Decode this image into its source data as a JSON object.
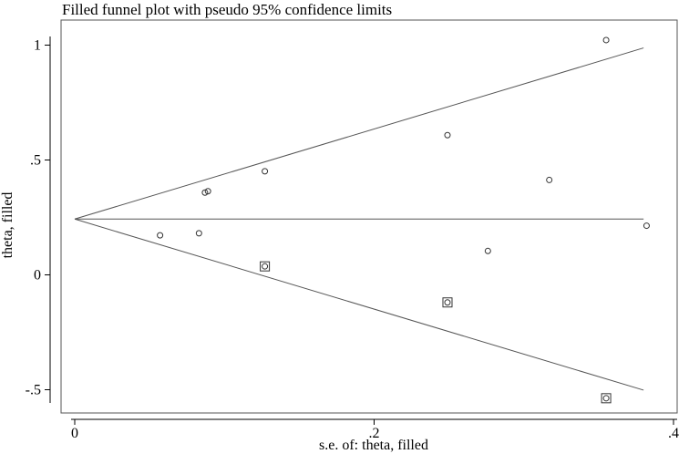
{
  "chart_data": {
    "type": "scatter",
    "title": "Filled funnel plot with pseudo 95% confidence limits",
    "xlabel": "s.e. of: theta, filled",
    "ylabel": "theta, filled",
    "xlim": [
      -0.01,
      0.4
    ],
    "ylim": [
      -0.59,
      1.09
    ],
    "xticks": [
      {
        "value": 0,
        "label": "0"
      },
      {
        "value": 0.2,
        "label": ".2"
      },
      {
        "value": 0.4,
        "label": ".4"
      }
    ],
    "yticks": [
      {
        "value": -0.5,
        "label": "-.5"
      },
      {
        "value": 0,
        "label": "0"
      },
      {
        "value": 0.5,
        "label": ".5"
      },
      {
        "value": 1,
        "label": "1"
      }
    ],
    "grid": false,
    "pooled_estimate": 0.243,
    "confidence_max_se": 0.38,
    "series": [
      {
        "marker": "circle",
        "points": [
          {
            "x": 0.057,
            "y": 0.172
          },
          {
            "x": 0.083,
            "y": 0.181
          },
          {
            "x": 0.087,
            "y": 0.358
          },
          {
            "x": 0.089,
            "y": 0.364
          },
          {
            "x": 0.127,
            "y": 0.451
          },
          {
            "x": 0.127,
            "y": 0.037
          },
          {
            "x": 0.249,
            "y": 0.608
          },
          {
            "x": 0.249,
            "y": -0.12
          },
          {
            "x": 0.276,
            "y": 0.104
          },
          {
            "x": 0.317,
            "y": 0.413
          },
          {
            "x": 0.355,
            "y": 1.022
          },
          {
            "x": 0.355,
            "y": -0.537
          },
          {
            "x": 0.382,
            "y": 0.214
          }
        ]
      },
      {
        "marker": "square",
        "points": [
          {
            "x": 0.127,
            "y": 0.037
          },
          {
            "x": 0.249,
            "y": -0.12
          },
          {
            "x": 0.355,
            "y": -0.537
          }
        ]
      }
    ]
  }
}
